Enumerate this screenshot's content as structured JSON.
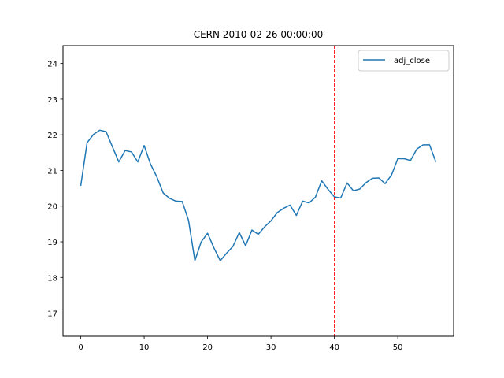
{
  "chart_data": {
    "type": "line",
    "title": "CERN 2010-02-26 00:00:00",
    "xlabel": "",
    "ylabel": "",
    "xlim": [
      -2.8,
      58.8
    ],
    "ylim": [
      16.35,
      24.5
    ],
    "x_ticks": [
      0,
      10,
      20,
      30,
      40,
      50
    ],
    "y_ticks": [
      17,
      18,
      19,
      20,
      21,
      22,
      23,
      24
    ],
    "grid": false,
    "legend": {
      "position": "top-right",
      "entries": [
        "adj_close"
      ]
    },
    "vertical_marker": {
      "x": 40,
      "color": "#ff0000",
      "style": "dashed"
    },
    "series": [
      {
        "name": "adj_close",
        "color": "#1f77b4",
        "x": [
          0,
          1,
          2,
          3,
          4,
          5,
          6,
          7,
          8,
          9,
          10,
          11,
          12,
          13,
          14,
          15,
          16,
          17,
          18,
          19,
          20,
          21,
          22,
          23,
          24,
          25,
          26,
          27,
          28,
          29,
          30,
          31,
          32,
          33,
          34,
          35,
          36,
          37,
          38,
          39,
          40,
          41,
          42,
          43,
          44,
          45,
          46,
          47,
          48,
          49,
          50,
          51,
          52,
          53,
          54,
          55,
          56
        ],
        "values": [
          20.57,
          21.78,
          22.01,
          22.13,
          22.09,
          21.66,
          21.24,
          21.56,
          21.52,
          21.24,
          21.7,
          21.18,
          20.82,
          20.37,
          20.22,
          20.14,
          20.13,
          19.6,
          18.47,
          19.0,
          19.24,
          18.83,
          18.47,
          18.68,
          18.87,
          19.26,
          18.89,
          19.33,
          19.21,
          19.42,
          19.59,
          19.82,
          19.94,
          20.03,
          19.74,
          20.14,
          20.09,
          20.25,
          20.71,
          20.47,
          20.26,
          20.23,
          20.65,
          20.43,
          20.48,
          20.66,
          20.78,
          20.79,
          20.63,
          20.87,
          21.33,
          21.33,
          21.28,
          21.6,
          21.72,
          21.72,
          21.24
        ]
      }
    ]
  }
}
